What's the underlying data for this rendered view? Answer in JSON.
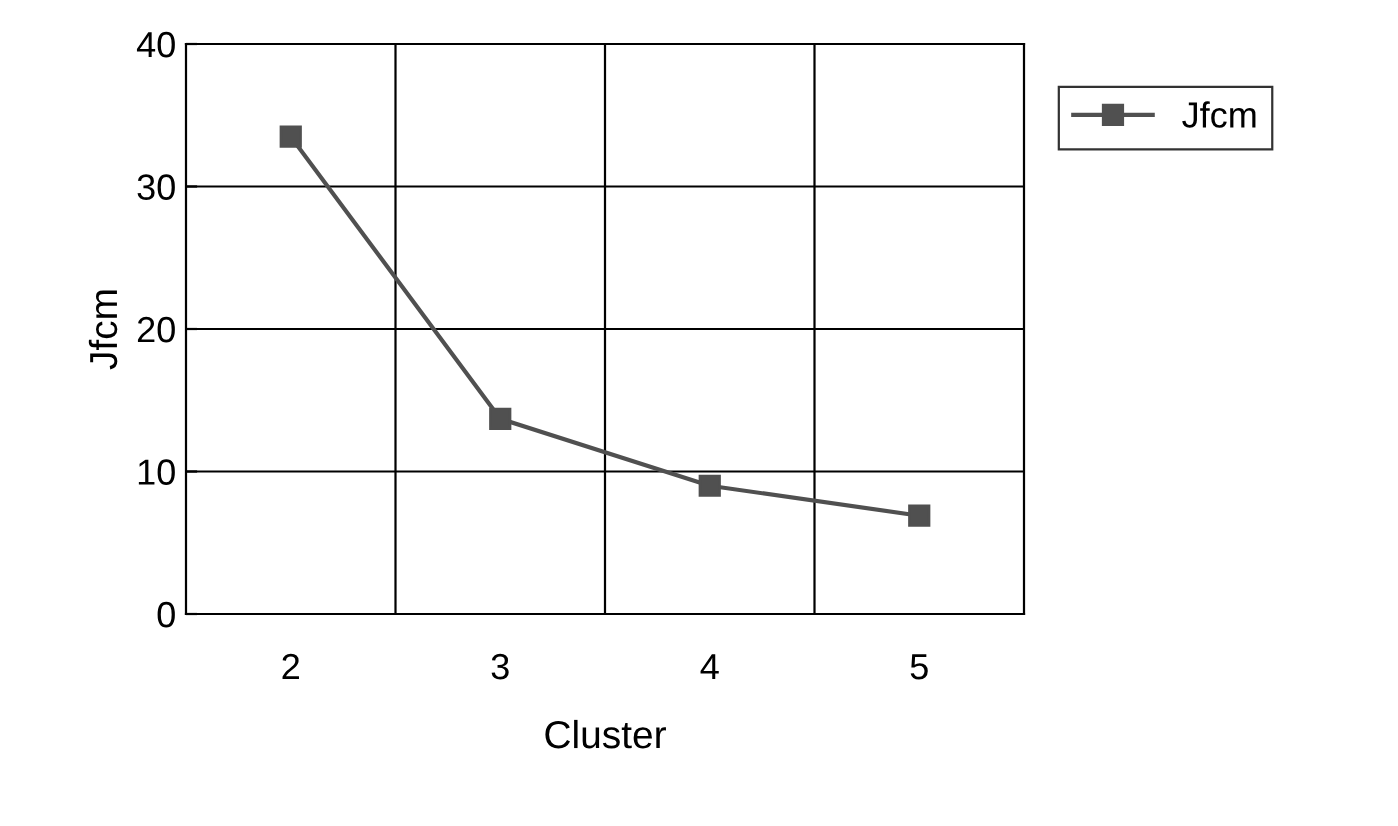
{
  "chart_data": {
    "type": "line",
    "xlabel": "Cluster",
    "ylabel": "Jfcm",
    "categories": [
      "2",
      "3",
      "4",
      "5"
    ],
    "series": [
      {
        "name": "Jfcm",
        "color": "#505050",
        "values": [
          33.5,
          13.7,
          9.0,
          6.9
        ]
      }
    ],
    "ylim": [
      0,
      40
    ],
    "yticks": [
      0,
      10,
      20,
      30,
      40
    ],
    "grid": true,
    "legend": "right",
    "marker": "square",
    "line_style": "solid"
  }
}
